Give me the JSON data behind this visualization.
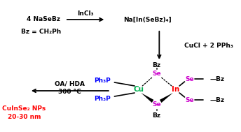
{
  "bg_color": "#ffffff",
  "fig_width": 3.44,
  "fig_height": 1.89,
  "dpi": 100,
  "step1_reagent": "4 NaSeBz",
  "step1_condition": "InCl₃",
  "step1_note": "Bz = CH₂Ph",
  "step1_product": "Na[In(SeBz)₄]",
  "step2_condition": "CuCl + 2 PPh₃",
  "complex_bz_top": "Bz",
  "complex_bz_bottom": "Bz",
  "complex_ph3p_top": "Ph₃P",
  "complex_ph3p_bottom": "Ph₃P",
  "complex_cu": "Cu",
  "complex_in": "In",
  "complex_se_top": "Se",
  "complex_se_bottom": "Se",
  "complex_se_right_top": "Se",
  "complex_se_right_bottom": "Se",
  "complex_bz_right_top": "—Bz",
  "complex_bz_right_bottom": "—Bz",
  "step3_condition1": "OA/ HDA",
  "step3_condition2": "300 °C",
  "step3_product_line1": "CuInSe₂ NPs",
  "step3_product_line2": "20-30 nm",
  "color_cu": "#00b050",
  "color_in": "#ff0000",
  "color_se": "#cc00cc",
  "color_ph3p": "#0000ff",
  "color_product": "#ff0000",
  "color_black": "#000000"
}
